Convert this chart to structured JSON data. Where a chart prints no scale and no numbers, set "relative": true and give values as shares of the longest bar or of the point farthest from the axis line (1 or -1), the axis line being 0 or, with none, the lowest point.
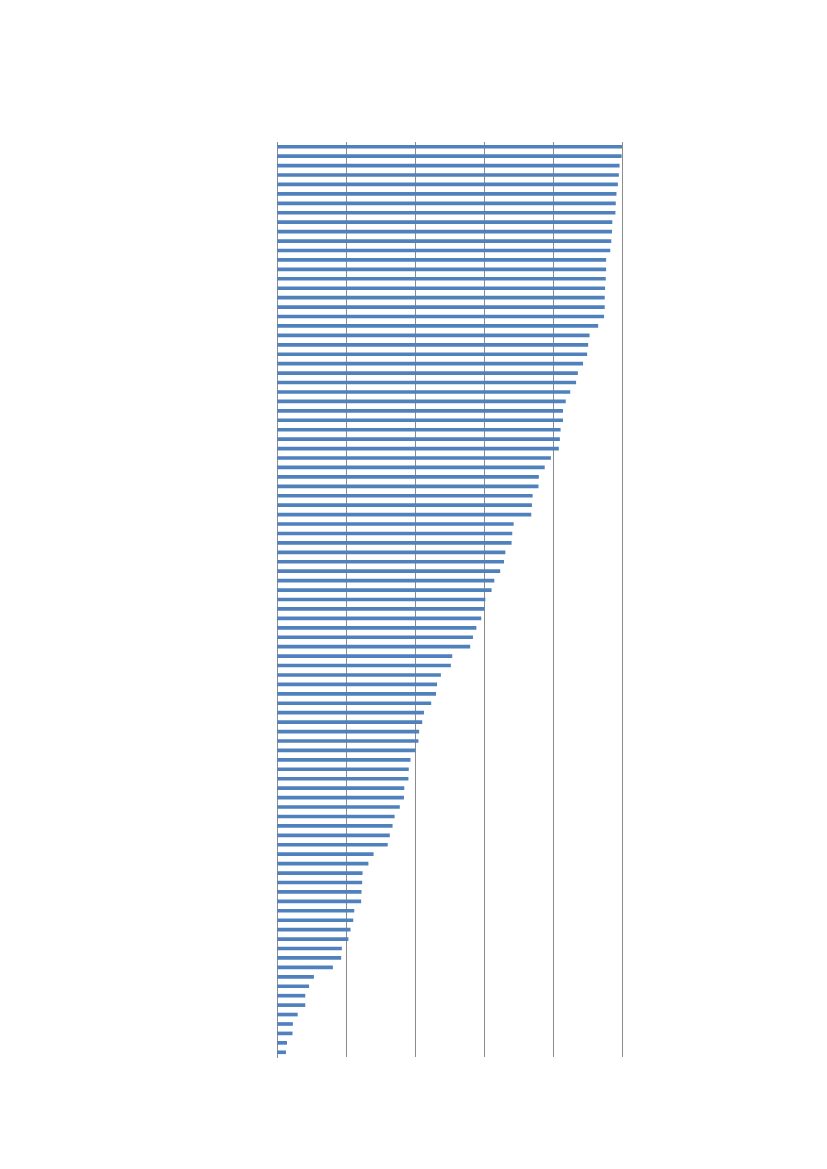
{
  "chart_data": {
    "type": "bar",
    "orientation": "horizontal",
    "relative": true,
    "grid": "x",
    "color": "#4f81bd",
    "categories": [
      null,
      null,
      null,
      null,
      null,
      null,
      null,
      null,
      null,
      null,
      null,
      null,
      null,
      null,
      null,
      null,
      null,
      null,
      null,
      null,
      null,
      null,
      null,
      null,
      null,
      null,
      null,
      null,
      null,
      null,
      null,
      null,
      null,
      null,
      null,
      null,
      null,
      null,
      null,
      null,
      null,
      null,
      null,
      null,
      null,
      null,
      null,
      null,
      null,
      null,
      null,
      null,
      null,
      null,
      null,
      null,
      null,
      null,
      null,
      null,
      null,
      null,
      null,
      null,
      null,
      null,
      null,
      null,
      null,
      null,
      null,
      null,
      null,
      null,
      null,
      null,
      null,
      null,
      null,
      null,
      null,
      null,
      null,
      null,
      null,
      null,
      null,
      null,
      null,
      null,
      null,
      null,
      null,
      null,
      null,
      null,
      null
    ],
    "values": [
      1.0,
      0.998,
      0.992,
      0.99,
      0.987,
      0.983,
      0.981,
      0.98,
      0.971,
      0.97,
      0.968,
      0.965,
      0.953,
      0.953,
      0.952,
      0.95,
      0.949,
      0.949,
      0.947,
      0.93,
      0.905,
      0.901,
      0.898,
      0.886,
      0.871,
      0.866,
      0.849,
      0.836,
      0.828,
      0.828,
      0.821,
      0.819,
      0.816,
      0.793,
      0.775,
      0.758,
      0.757,
      0.74,
      0.738,
      0.736,
      0.685,
      0.681,
      0.679,
      0.661,
      0.657,
      0.646,
      0.629,
      0.621,
      0.603,
      0.601,
      0.591,
      0.577,
      0.567,
      0.559,
      0.507,
      0.503,
      0.474,
      0.463,
      0.46,
      0.446,
      0.425,
      0.42,
      0.411,
      0.409,
      0.4,
      0.386,
      0.381,
      0.38,
      0.368,
      0.367,
      0.355,
      0.34,
      0.334,
      0.326,
      0.32,
      0.279,
      0.264,
      0.247,
      0.246,
      0.244,
      0.243,
      0.223,
      0.22,
      0.212,
      0.206,
      0.187,
      0.185,
      0.161,
      0.106,
      0.092,
      0.081,
      0.081,
      0.059,
      0.045,
      0.044,
      0.028,
      0.025
    ]
  }
}
